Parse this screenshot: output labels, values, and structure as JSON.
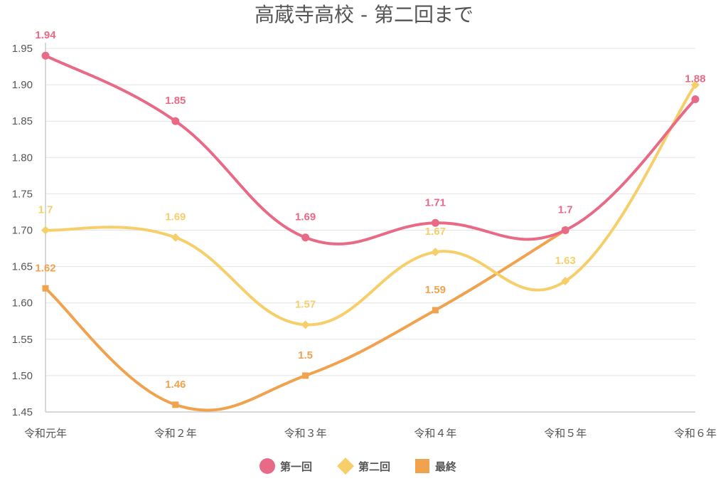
{
  "chart_data": {
    "type": "line",
    "title": "高蔵寺高校 - 第二回まで",
    "xlabel": "",
    "ylabel": "",
    "categories": [
      "令和元年",
      "令和２年",
      "令和３年",
      "令和４年",
      "令和５年",
      "令和６年"
    ],
    "ylim": [
      1.45,
      1.95
    ],
    "yticks": [
      "1.45",
      "1.50",
      "1.55",
      "1.60",
      "1.65",
      "1.70",
      "1.75",
      "1.80",
      "1.85",
      "1.90",
      "1.95"
    ],
    "grid": true,
    "smooth": true,
    "legend_position": "bottom",
    "series": [
      {
        "name": "第一回",
        "color": "#e86a86",
        "marker": "circle",
        "values": [
          1.94,
          1.85,
          1.69,
          1.71,
          1.7,
          1.88
        ],
        "labels": [
          "1.94",
          "1.85",
          "1.69",
          "1.71",
          "1.7",
          "1.88"
        ]
      },
      {
        "name": "第二回",
        "color": "#f6cf6a",
        "marker": "diamond",
        "values": [
          1.7,
          1.69,
          1.57,
          1.67,
          1.63,
          1.9
        ],
        "labels": [
          "1.7",
          "1.69",
          "1.57",
          "1.67",
          "1.63",
          null
        ]
      },
      {
        "name": "最終",
        "color": "#f0a24e",
        "marker": "square",
        "values": [
          1.62,
          1.46,
          1.5,
          1.59,
          1.7,
          null
        ],
        "labels": [
          "1.62",
          "1.46",
          "1.5",
          "1.59",
          null,
          null
        ]
      }
    ]
  }
}
